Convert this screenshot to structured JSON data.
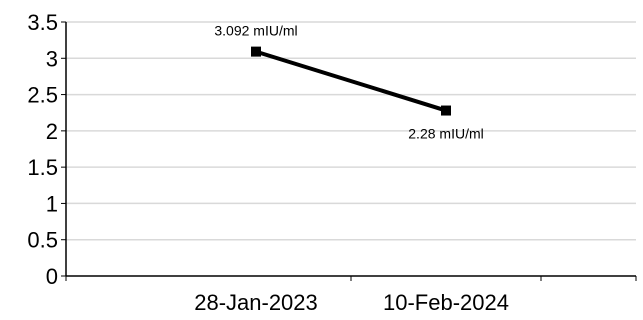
{
  "chart_data": {
    "type": "line",
    "categories": [
      "28-Jan-2023",
      "10-Feb-2024"
    ],
    "series": [
      {
        "values": [
          3.092,
          2.28
        ],
        "labels": [
          "3.092 mIU/ml",
          "2.28 mIU/ml"
        ],
        "color": "#000000"
      }
    ],
    "ylim": [
      0,
      3.5
    ],
    "yticks": [
      "0",
      "0.5",
      "1",
      "1.5",
      "2",
      "2.5",
      "3",
      "3.5"
    ],
    "grid": true,
    "grid_color": "#d9d9d9",
    "title": "",
    "xlabel": "",
    "ylabel": ""
  }
}
